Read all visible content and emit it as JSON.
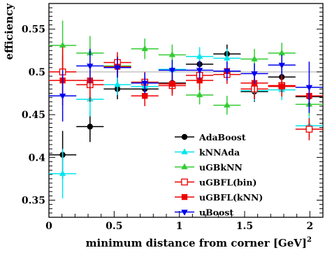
{
  "chart_data": {
    "type": "scatter",
    "title": "",
    "xlabel": "minimum distance from corner [GeV]",
    "xlabel_superscript": "2",
    "ylabel": "efficiency",
    "xlim": [
      0,
      2.1
    ],
    "ylim": [
      0.33,
      0.58
    ],
    "xticks": [
      0,
      0.5,
      1,
      1.5,
      2
    ],
    "xtick_labels": [
      "0",
      "0.5",
      "1",
      "1.5",
      "2"
    ],
    "yticks": [
      0.35,
      0.4,
      0.45,
      0.5,
      0.55
    ],
    "ytick_labels": [
      "0.35",
      "0.4",
      "0.45",
      "0.5",
      "0.55"
    ],
    "reference_line": 0.5,
    "grid": false,
    "legend_position": "lower-right",
    "x": [
      0.105,
      0.315,
      0.525,
      0.735,
      0.945,
      1.155,
      1.365,
      1.575,
      1.785,
      1.995
    ],
    "xerr": 0.105,
    "series": [
      {
        "name": "AdaBoost",
        "color": "#000000",
        "marker": "circle",
        "values": [
          0.403,
          0.436,
          0.48,
          0.48,
          0.487,
          0.509,
          0.521,
          0.477,
          0.494,
          0.471
        ],
        "errors": [
          0.028,
          0.018,
          0.012,
          0.012,
          0.012,
          0.011,
          0.011,
          0.012,
          0.012,
          0.013
        ]
      },
      {
        "name": "kNNAda",
        "color": "#00e5ee",
        "marker": "triangle-up",
        "values": [
          0.381,
          0.468,
          0.485,
          0.483,
          0.503,
          0.518,
          0.516,
          0.478,
          0.479,
          0.437
        ],
        "errors": [
          0.029,
          0.02,
          0.012,
          0.012,
          0.012,
          0.011,
          0.011,
          0.012,
          0.012,
          0.013
        ]
      },
      {
        "name": "uGBkNN",
        "color": "#33cc33",
        "marker": "triangle-up",
        "values": [
          0.531,
          0.522,
          0.507,
          0.527,
          0.52,
          0.473,
          0.461,
          0.515,
          0.522,
          0.462
        ],
        "errors": [
          0.029,
          0.02,
          0.012,
          0.012,
          0.012,
          0.011,
          0.011,
          0.012,
          0.012,
          0.013
        ]
      },
      {
        "name": "uGBFL(bin)",
        "color": "#ee0000",
        "marker": "square-open",
        "values": [
          0.5,
          0.485,
          0.511,
          0.488,
          0.484,
          0.496,
          0.497,
          0.48,
          0.484,
          0.433
        ],
        "errors": [
          0.029,
          0.02,
          0.012,
          0.012,
          0.012,
          0.011,
          0.011,
          0.012,
          0.012,
          0.013
        ]
      },
      {
        "name": "uGBFL(kNN)",
        "color": "#ee0000",
        "marker": "square",
        "values": [
          0.49,
          0.49,
          0.506,
          0.472,
          0.486,
          0.49,
          0.501,
          0.487,
          0.483,
          0.472
        ],
        "errors": [
          0.029,
          0.02,
          0.012,
          0.012,
          0.012,
          0.011,
          0.011,
          0.012,
          0.012,
          0.013
        ]
      },
      {
        "name": "uBoost",
        "color": "#0000ee",
        "marker": "triangle-down",
        "values": [
          0.472,
          0.507,
          0.505,
          0.487,
          0.502,
          0.502,
          0.501,
          0.498,
          0.508,
          0.482
        ],
        "errors": [
          0.03,
          0.02,
          0.012,
          0.012,
          0.012,
          0.011,
          0.011,
          0.012,
          0.012,
          0.03
        ]
      }
    ]
  }
}
